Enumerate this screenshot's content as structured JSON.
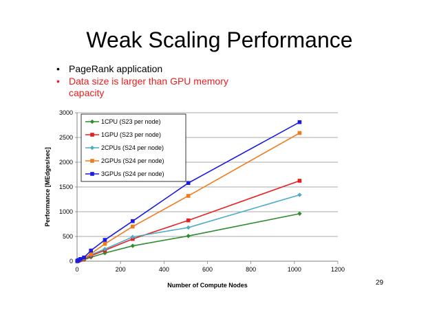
{
  "slide": {
    "title": "Weak Scaling Performance",
    "bullets": [
      {
        "text": "PageRank application",
        "color": "#000000"
      },
      {
        "text": "Data size is larger than GPU memory capacity",
        "color": "#ee1c1c"
      }
    ],
    "page_number": "29"
  },
  "chart_data": {
    "type": "line",
    "xlabel": "Number of Compute Nodes",
    "ylabel": "Performance [MEdges/sec]",
    "xlim": [
      0,
      1200
    ],
    "ylim": [
      0,
      3000
    ],
    "xticks": [
      0,
      200,
      400,
      600,
      800,
      1000,
      1200
    ],
    "yticks": [
      0,
      500,
      1000,
      1500,
      2000,
      2500,
      3000
    ],
    "grid": "horizontal",
    "legend_position": "top-left",
    "x": [
      1,
      2,
      4,
      8,
      16,
      32,
      64,
      128,
      256,
      512,
      1024
    ],
    "series": [
      {
        "name": "1CPU (S23 per node)",
        "color": "#2e8b2e",
        "marker": "diamond",
        "values": [
          1,
          2,
          4,
          8,
          15,
          30,
          80,
          165,
          310,
          510,
          960
        ]
      },
      {
        "name": "1GPU (S23 per node)",
        "color": "#e8201f",
        "marker": "square",
        "values": [
          2,
          4,
          8,
          15,
          25,
          45,
          110,
          220,
          450,
          825,
          1625
        ]
      },
      {
        "name": "2CPUs (S24 per node)",
        "color": "#4bacc6",
        "marker": "diamond",
        "values": [
          2,
          4,
          8,
          16,
          30,
          55,
          130,
          245,
          490,
          680,
          1340
        ]
      },
      {
        "name": "2GPUs (S24 per node)",
        "color": "#f07b1f",
        "marker": "square",
        "values": [
          3,
          6,
          12,
          20,
          35,
          60,
          150,
          350,
          700,
          1320,
          2590
        ]
      },
      {
        "name": "3GPUs (S24 per node)",
        "color": "#1a1ae0",
        "marker": "square",
        "values": [
          3,
          7,
          14,
          25,
          45,
          75,
          215,
          430,
          810,
          1580,
          2810
        ]
      }
    ]
  }
}
